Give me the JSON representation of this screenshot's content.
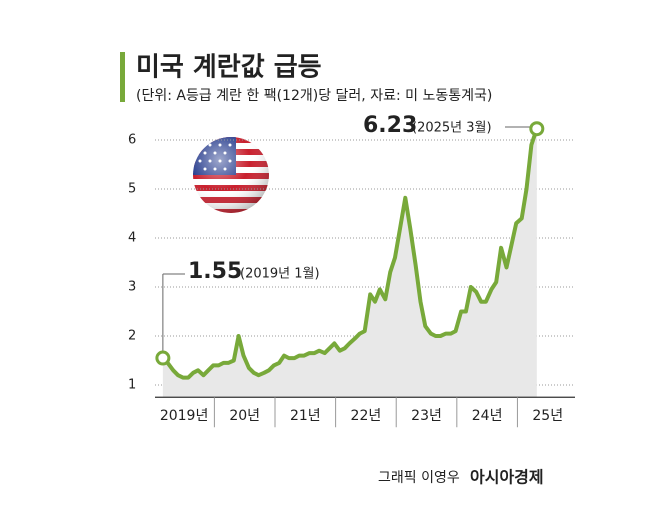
{
  "chart_data": {
    "type": "line",
    "title": "미국 계란값 급등",
    "subtitle": "(단위: A등급 계란 한 팩(12개)당 달러, 자료: 미 노동통계국)",
    "credit": "그래픽 이영우",
    "source_logo": "아시아경제",
    "annotations": [
      {
        "text": "1.55",
        "note": "(2019년 1월)"
      },
      {
        "text": "6.23",
        "note": "(2025년 3월)"
      }
    ],
    "x": [
      2019.0,
      2019.08,
      2019.17,
      2019.25,
      2019.33,
      2019.42,
      2019.5,
      2019.58,
      2019.67,
      2019.75,
      2019.83,
      2019.92,
      2020.0,
      2020.08,
      2020.17,
      2020.25,
      2020.33,
      2020.42,
      2020.5,
      2020.58,
      2020.67,
      2020.75,
      2020.83,
      2020.92,
      2021.0,
      2021.08,
      2021.17,
      2021.25,
      2021.33,
      2021.42,
      2021.5,
      2021.58,
      2021.67,
      2021.75,
      2021.83,
      2021.92,
      2022.0,
      2022.08,
      2022.17,
      2022.25,
      2022.33,
      2022.42,
      2022.5,
      2022.58,
      2022.67,
      2022.75,
      2022.83,
      2022.92,
      2023.0,
      2023.08,
      2023.17,
      2023.25,
      2023.33,
      2023.42,
      2023.5,
      2023.58,
      2023.67,
      2023.75,
      2023.83,
      2023.92,
      2024.0,
      2024.08,
      2024.17,
      2024.25,
      2024.33,
      2024.42,
      2024.5,
      2024.58,
      2024.67,
      2024.75,
      2024.83,
      2024.92,
      2025.0,
      2025.08,
      2025.17
    ],
    "series": [
      {
        "color": "#78a93a",
        "values": [
          1.55,
          1.45,
          1.3,
          1.2,
          1.15,
          1.15,
          1.25,
          1.3,
          1.2,
          1.3,
          1.4,
          1.4,
          1.45,
          1.45,
          1.5,
          2.0,
          1.6,
          1.35,
          1.25,
          1.2,
          1.25,
          1.3,
          1.4,
          1.45,
          1.6,
          1.55,
          1.55,
          1.6,
          1.6,
          1.65,
          1.65,
          1.7,
          1.65,
          1.75,
          1.85,
          1.7,
          1.75,
          1.85,
          1.95,
          2.05,
          2.1,
          2.85,
          2.7,
          2.95,
          2.75,
          3.3,
          3.6,
          4.25,
          4.82,
          4.2,
          3.45,
          2.7,
          2.2,
          2.05,
          2.0,
          2.0,
          2.05,
          2.05,
          2.1,
          2.5,
          2.5,
          3.0,
          2.9,
          2.7,
          2.7,
          2.95,
          3.1,
          3.8,
          3.4,
          3.85,
          4.3,
          4.4,
          5.0,
          5.9,
          6.23
        ]
      }
    ],
    "area_color": "#e8e8e8",
    "xlim": [
      2018.87,
      2025.8
    ],
    "xticks": [
      {
        "value": 2019.35,
        "label": "2019년"
      },
      {
        "value": 2020.35,
        "label": "20년"
      },
      {
        "value": 2021.35,
        "label": "21년"
      },
      {
        "value": 2022.35,
        "label": "22년"
      },
      {
        "value": 2023.35,
        "label": "23년"
      },
      {
        "value": 2024.35,
        "label": "24년"
      },
      {
        "value": 2025.35,
        "label": "25년"
      }
    ],
    "ylim": [
      0.75,
      6.5
    ],
    "yticks": [
      1,
      2,
      3,
      4,
      5,
      6
    ],
    "grid": true
  }
}
